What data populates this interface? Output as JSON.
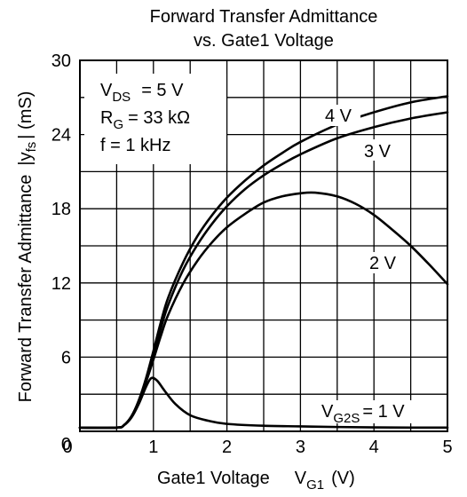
{
  "chart_data": {
    "type": "line",
    "title_line1": "Forward Transfer Admittance",
    "title_line2": "vs. Gate1 Voltage",
    "xlabel_main": "Gate1 Voltage",
    "xlabel_sym": "V",
    "xlabel_sub": "G1",
    "xlabel_unit": "(V)",
    "ylabel_main": "Forward Transfer Admittance",
    "ylabel_sym": "|y",
    "ylabel_sub": "fs",
    "ylabel_unit": "| (mS)",
    "xlim": [
      0,
      5
    ],
    "ylim": [
      0,
      30
    ],
    "x_ticks": [
      "0",
      "1",
      "2",
      "3",
      "4",
      "5"
    ],
    "y_ticks": [
      "30",
      "24",
      "18",
      "12",
      "6",
      "0"
    ],
    "grid": true,
    "conditions": {
      "vds_sym": "V",
      "vds_sub": "DS",
      "vds_val": "= 5 V",
      "rg_sym": "R",
      "rg_sub": "G",
      "rg_val": "= 33 kΩ",
      "freq": "f = 1 kHz"
    },
    "series": [
      {
        "name": "4 V",
        "x": [
          0,
          0.5,
          0.6,
          0.7,
          0.8,
          0.9,
          1.0,
          1.1,
          1.2,
          1.4,
          1.6,
          1.8,
          2.0,
          2.25,
          2.5,
          2.75,
          3.0,
          3.5,
          4.0,
          4.5,
          5.0
        ],
        "y": [
          0.3,
          0.3,
          0.5,
          1.2,
          2.5,
          4.3,
          6.5,
          8.8,
          10.8,
          13.6,
          15.8,
          17.5,
          18.9,
          20.3,
          21.5,
          22.5,
          23.4,
          24.8,
          25.8,
          26.6,
          27.1
        ]
      },
      {
        "name": "3 V",
        "x": [
          0,
          0.5,
          0.6,
          0.7,
          0.8,
          0.9,
          1.0,
          1.1,
          1.2,
          1.4,
          1.6,
          1.8,
          2.0,
          2.25,
          2.5,
          2.75,
          3.0,
          3.5,
          4.0,
          4.5,
          5.0
        ],
        "y": [
          0.3,
          0.3,
          0.5,
          1.2,
          2.4,
          4.1,
          6.1,
          8.3,
          10.2,
          13.0,
          15.1,
          16.8,
          18.2,
          19.6,
          20.7,
          21.6,
          22.4,
          23.7,
          24.6,
          25.3,
          25.8
        ]
      },
      {
        "name": "2 V",
        "x": [
          0,
          0.5,
          0.6,
          0.7,
          0.8,
          0.9,
          1.0,
          1.1,
          1.2,
          1.4,
          1.6,
          1.8,
          2.0,
          2.25,
          2.5,
          2.75,
          3.0,
          3.2,
          3.5,
          3.75,
          4.0,
          4.25,
          4.5,
          4.75,
          5.0
        ],
        "y": [
          0.3,
          0.3,
          0.5,
          1.2,
          2.4,
          4.0,
          5.8,
          7.7,
          9.4,
          11.9,
          13.8,
          15.3,
          16.5,
          17.6,
          18.5,
          19.0,
          19.25,
          19.3,
          19.0,
          18.4,
          17.5,
          16.3,
          15.0,
          13.5,
          11.9
        ]
      },
      {
        "name": "V_G2S = 1 V",
        "x": [
          0,
          0.5,
          0.6,
          0.7,
          0.8,
          0.9,
          0.97,
          1.05,
          1.15,
          1.3,
          1.5,
          1.75,
          2.0,
          2.5,
          3.0,
          3.5,
          4.0,
          4.5,
          5.0
        ],
        "y": [
          0.3,
          0.3,
          0.5,
          1.1,
          2.2,
          3.6,
          4.3,
          4.1,
          3.3,
          2.2,
          1.3,
          0.85,
          0.6,
          0.45,
          0.4,
          0.35,
          0.32,
          0.3,
          0.3
        ]
      }
    ],
    "curve_labels": {
      "v4": "4 V",
      "v3": "3 V",
      "v2": "2 V",
      "v1_sym": "V",
      "v1_sub": "G2S",
      "v1_val": "= 1 V"
    }
  }
}
